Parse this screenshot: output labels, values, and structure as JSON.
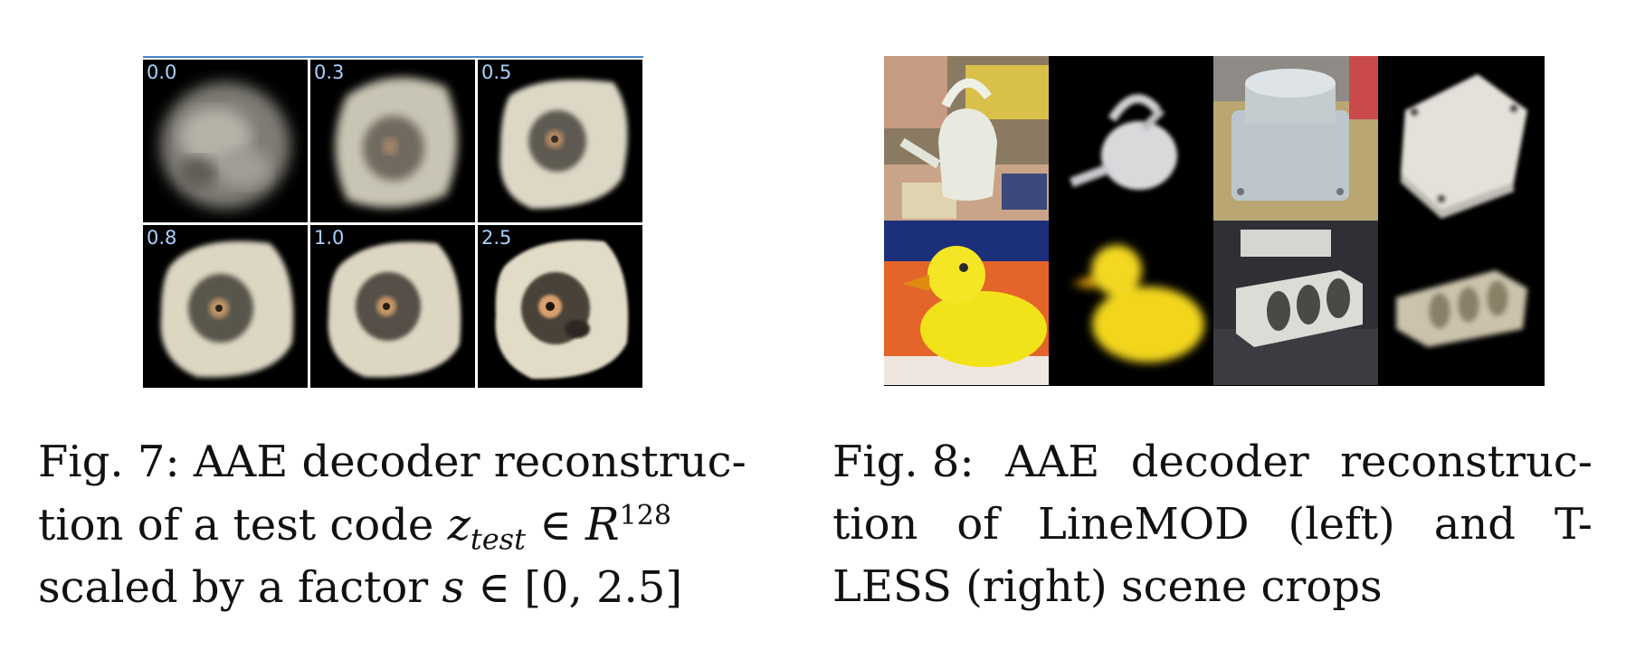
{
  "figure7": {
    "scale_labels": [
      "0.0",
      "0.3",
      "0.5",
      "0.8",
      "1.0",
      "2.5"
    ],
    "caption": {
      "line1": "Fig. 7: AAE decoder reconstruc-",
      "line2_pre": "tion of a test code ",
      "line2_var": "z",
      "line2_sub": "test",
      "line2_in": " ∈ ",
      "line2_set": "R",
      "line2_sup": "128",
      "line3_pre": "scaled by a factor ",
      "line3_var": "s",
      "line3_post": " ∈ [0, 2.5]"
    }
  },
  "figure8": {
    "caption": {
      "line1_words": [
        "Fig. 8:",
        "AAE",
        "decoder",
        "reconstruc-"
      ],
      "line2_words": [
        "tion",
        "of",
        "LineMOD",
        "(left)",
        "and",
        "T-"
      ],
      "line3": "LESS (right) scene crops"
    }
  }
}
